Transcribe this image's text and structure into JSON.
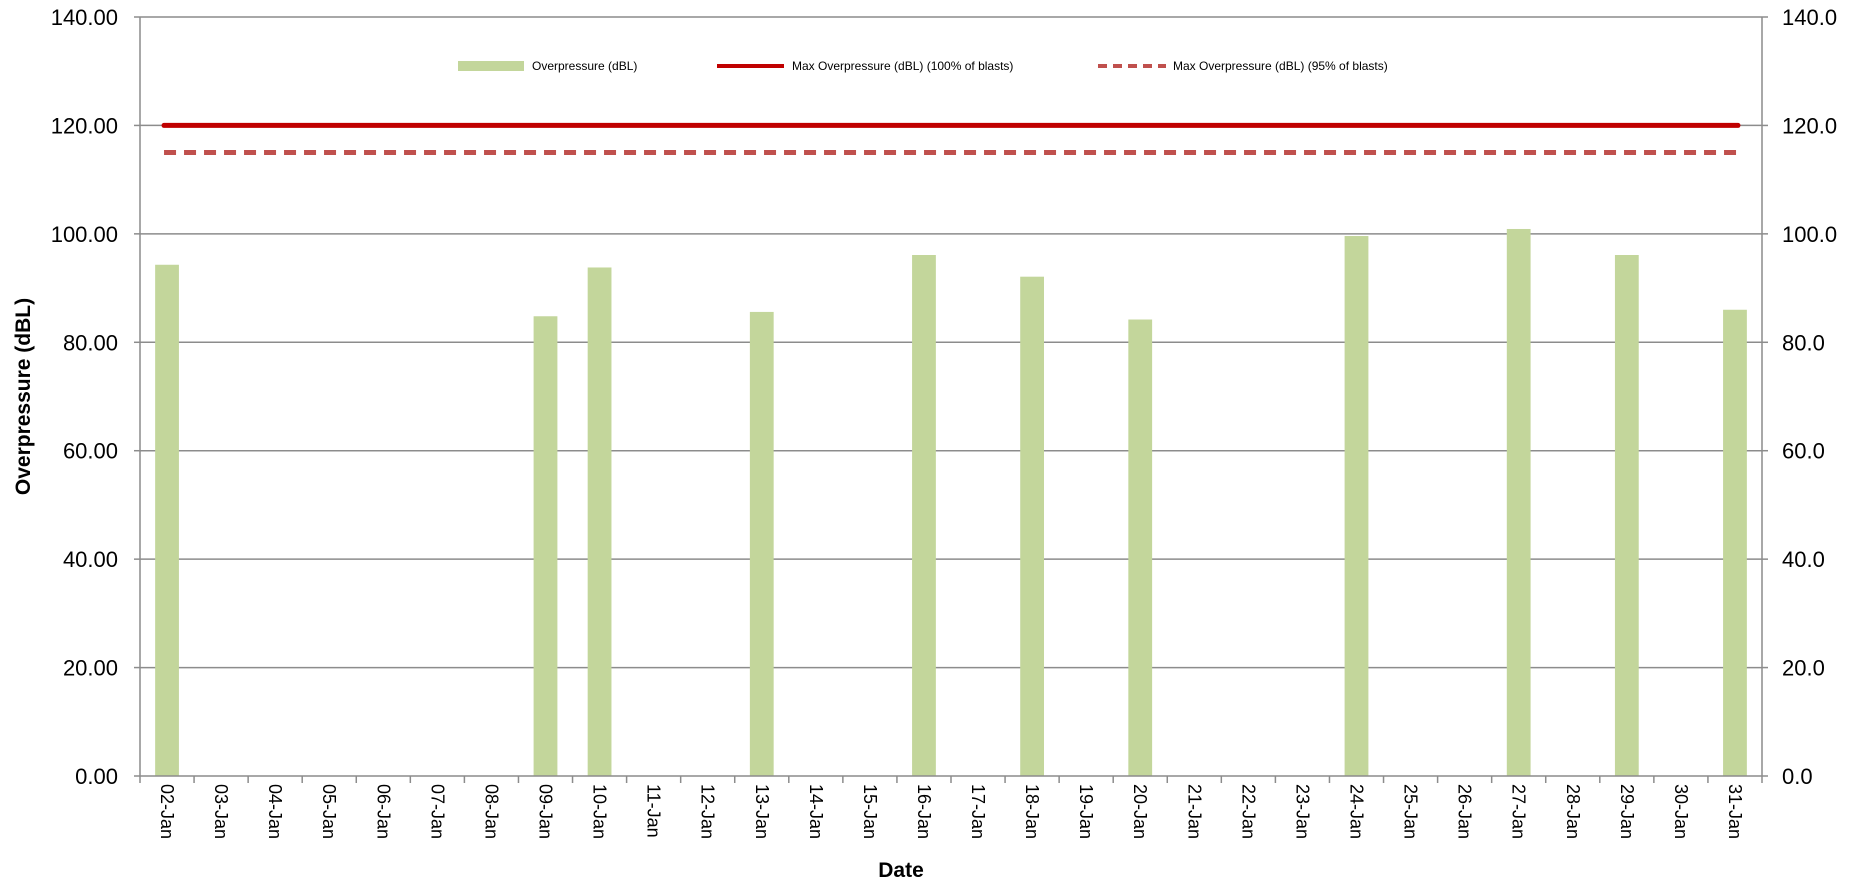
{
  "chart_data": {
    "type": "bar",
    "xlabel": "Date",
    "ylabel": "Overpressure (dBL)",
    "ylim": [
      0,
      140
    ],
    "yticks_left": [
      "0.00",
      "20.00",
      "40.00",
      "60.00",
      "80.00",
      "100.00",
      "120.00",
      "140.00"
    ],
    "yticks_right": [
      "0.0",
      "20.0",
      "40.0",
      "60.0",
      "80.0",
      "100.0",
      "120.0",
      "140.0"
    ],
    "grid": true,
    "legend_position": "top",
    "categories": [
      "02-Jan",
      "03-Jan",
      "04-Jan",
      "05-Jan",
      "06-Jan",
      "07-Jan",
      "08-Jan",
      "09-Jan",
      "10-Jan",
      "11-Jan",
      "12-Jan",
      "13-Jan",
      "14-Jan",
      "15-Jan",
      "16-Jan",
      "17-Jan",
      "18-Jan",
      "19-Jan",
      "20-Jan",
      "21-Jan",
      "22-Jan",
      "23-Jan",
      "24-Jan",
      "25-Jan",
      "26-Jan",
      "27-Jan",
      "28-Jan",
      "29-Jan",
      "30-Jan",
      "31-Jan"
    ],
    "series": [
      {
        "name": "Overpressure (dBL)",
        "kind": "bar",
        "color": "#c3d69b",
        "values": [
          94.3,
          null,
          null,
          null,
          null,
          null,
          null,
          84.8,
          93.8,
          null,
          null,
          85.6,
          null,
          null,
          96.1,
          null,
          92.1,
          null,
          84.2,
          null,
          null,
          null,
          99.6,
          null,
          null,
          100.9,
          null,
          96.1,
          null,
          86.0
        ]
      },
      {
        "name": "Max Overpressure (dBL) (100% of blasts)",
        "kind": "line",
        "style": "solid",
        "color": "#c00000",
        "value": 120
      },
      {
        "name": "Max Overpressure (dBL) (95% of blasts)",
        "kind": "line",
        "style": "dashed",
        "color": "#c0504d",
        "value": 115
      }
    ]
  }
}
